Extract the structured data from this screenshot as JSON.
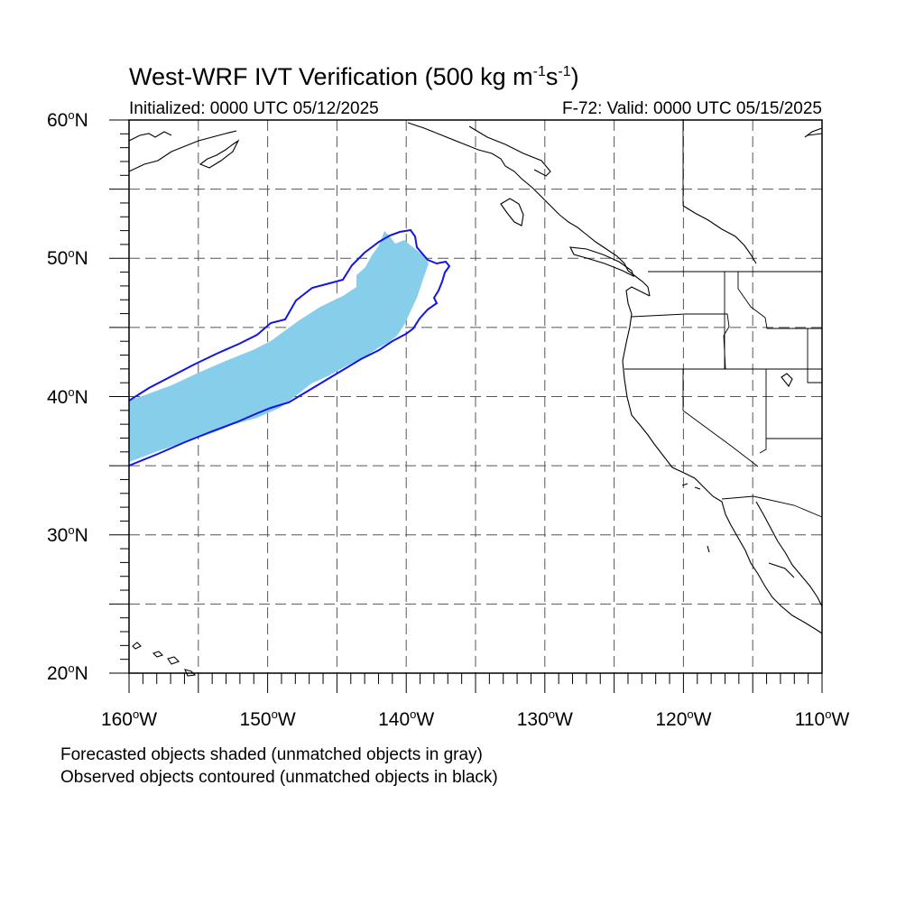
{
  "title": {
    "main": "West-WRF IVT Verification",
    "units_prefix": "(500 kg m",
    "units_exp1": "-1",
    "units_mid": "s",
    "units_exp2": "-1",
    "units_suffix": ")"
  },
  "subtitle": {
    "initialized": "Initialized: 0000 UTC 05/12/2025",
    "valid": "F-72: Valid: 0000 UTC 05/15/2025"
  },
  "map": {
    "lat_range": [
      20,
      60
    ],
    "lon_range": [
      -160,
      -110
    ],
    "lat_labels": [
      {
        "value": "60",
        "hemi": "N"
      },
      {
        "value": "50",
        "hemi": "N"
      },
      {
        "value": "40",
        "hemi": "N"
      },
      {
        "value": "30",
        "hemi": "N"
      },
      {
        "value": "20",
        "hemi": "N"
      }
    ],
    "lon_labels": [
      {
        "value": "160",
        "hemi": "W"
      },
      {
        "value": "150",
        "hemi": "W"
      },
      {
        "value": "140",
        "hemi": "W"
      },
      {
        "value": "130",
        "hemi": "W"
      },
      {
        "value": "120",
        "hemi": "W"
      },
      {
        "value": "110",
        "hemi": "W"
      }
    ],
    "grid": "dashed",
    "forecast_fill_color": "#87CEEB",
    "observed_contour_color": "#1414E6",
    "coastline_color": "#000000"
  },
  "caption": {
    "line1": "Forecasted objects shaded (unmatched objects in gray)",
    "line2": "Observed objects contoured (unmatched objects in black)"
  }
}
